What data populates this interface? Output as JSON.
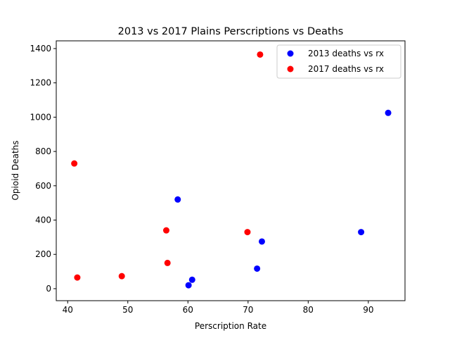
{
  "chart_data": {
    "type": "scatter",
    "title": "2013 vs 2017 Plains Perscriptions vs Deaths",
    "xlabel": "Perscription Rate",
    "ylabel": "Opioid Deaths",
    "xlim": [
      38.1,
      96.1
    ],
    "ylim": [
      -70,
      1445
    ],
    "xticks": [
      40,
      50,
      60,
      70,
      80,
      90
    ],
    "yticks": [
      0,
      200,
      400,
      600,
      800,
      1000,
      1200,
      1400
    ],
    "grid": false,
    "legend_position": "upper right",
    "series": [
      {
        "name": "2013 deaths vs rx",
        "color": "#0000ff",
        "points": [
          {
            "x": 93.3,
            "y": 1025
          },
          {
            "x": 58.3,
            "y": 520
          },
          {
            "x": 88.8,
            "y": 330
          },
          {
            "x": 72.3,
            "y": 275
          },
          {
            "x": 71.5,
            "y": 117
          },
          {
            "x": 60.7,
            "y": 52
          },
          {
            "x": 60.1,
            "y": 20
          }
        ]
      },
      {
        "name": "2017 deaths vs rx",
        "color": "#ff0000",
        "points": [
          {
            "x": 72.0,
            "y": 1365
          },
          {
            "x": 41.1,
            "y": 730
          },
          {
            "x": 56.4,
            "y": 340
          },
          {
            "x": 69.9,
            "y": 330
          },
          {
            "x": 56.6,
            "y": 150
          },
          {
            "x": 49.0,
            "y": 73
          },
          {
            "x": 41.6,
            "y": 65
          }
        ]
      }
    ]
  }
}
